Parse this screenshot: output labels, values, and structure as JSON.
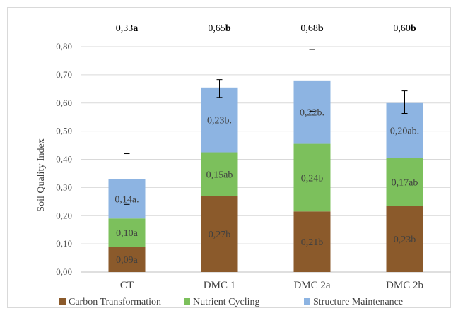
{
  "chart_data": {
    "type": "bar",
    "stacked": true,
    "ylabel": "Soil Quality Index",
    "xlabel": "",
    "ylim": [
      0,
      0.8
    ],
    "ytick_step": 0.1,
    "yticks": [
      "0,00",
      "0,10",
      "0,20",
      "0,30",
      "0,40",
      "0,50",
      "0,60",
      "0,70",
      "0,80"
    ],
    "grid": true,
    "legend_position": "bottom",
    "categories": [
      "CT",
      "DMC 1",
      "DMC 2a",
      "DMC 2b"
    ],
    "series": [
      {
        "name": "Carbon Transformation",
        "color": "#8B5A2B",
        "values": [
          0.09,
          0.27,
          0.215,
          0.235
        ],
        "labels": [
          "0,09a",
          "0,27b",
          "0,21b",
          "0,23b"
        ]
      },
      {
        "name": "Nutrient Cycling",
        "color": "#7CC05C",
        "values": [
          0.1,
          0.155,
          0.24,
          0.17
        ],
        "labels": [
          "0,10a",
          "0,15ab",
          "0,24b",
          "0,17ab"
        ]
      },
      {
        "name": "Structure Maintenance",
        "color": "#8DB4E2",
        "values": [
          0.14,
          0.23,
          0.225,
          0.195
        ],
        "labels": [
          "0,14a.",
          "0,23b.",
          "0,22b.",
          "0,20ab."
        ]
      }
    ],
    "totals": [
      {
        "value": "0,33",
        "letter": "a"
      },
      {
        "value": "0,65",
        "letter": "b"
      },
      {
        "value": "0,68",
        "letter": "b"
      },
      {
        "value": "0,60",
        "letter": "b"
      }
    ],
    "totals_numeric": [
      0.33,
      0.652,
      0.68,
      0.6
    ],
    "error_bars": [
      {
        "low": 0.24,
        "high": 0.42
      },
      {
        "low": 0.62,
        "high": 0.683
      },
      {
        "low": 0.57,
        "high": 0.79
      },
      {
        "low": 0.563,
        "high": 0.643
      }
    ]
  }
}
